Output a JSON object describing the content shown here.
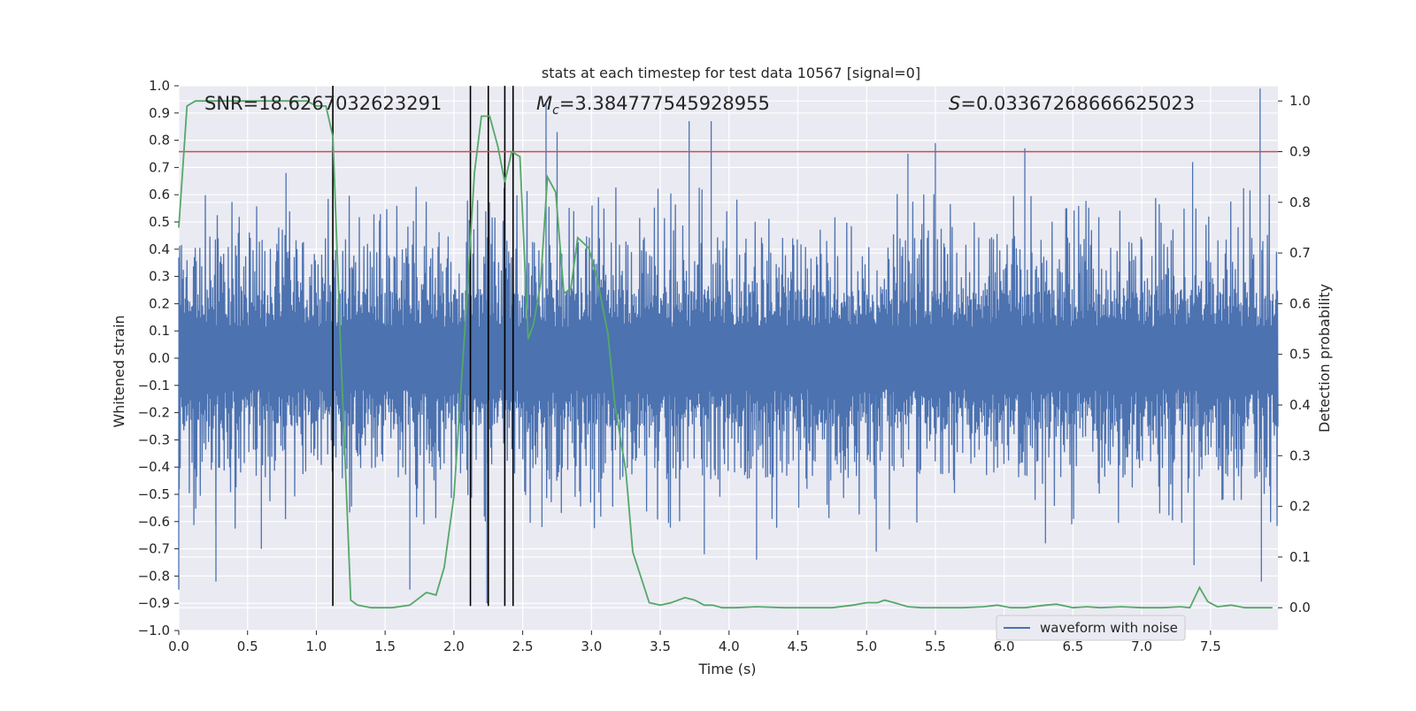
{
  "chart_data": {
    "type": "line",
    "title": "stats at each timestep for test data 10567 [signal=0]",
    "xlabel": "Time (s)",
    "ylabel": "Whitened strain",
    "ylabel_right": "Detection probability",
    "xlim": [
      0.0,
      7.99
    ],
    "ylim": [
      -1.0,
      1.0
    ],
    "ylim_right": [
      -0.045,
      1.03
    ],
    "x_ticks": [
      "0.0",
      "0.5",
      "1.0",
      "1.5",
      "2.0",
      "2.5",
      "3.0",
      "3.5",
      "4.0",
      "4.5",
      "5.0",
      "5.5",
      "6.0",
      "6.5",
      "7.0",
      "7.5"
    ],
    "y_ticks": [
      "1.0",
      "0.9",
      "0.8",
      "0.7",
      "0.6",
      "0.5",
      "0.4",
      "0.3",
      "0.2",
      "0.1",
      "0.0",
      "−0.1",
      "−0.2",
      "−0.3",
      "−0.4",
      "−0.5",
      "−0.6",
      "−0.7",
      "−0.8",
      "−0.9",
      "−1.0"
    ],
    "y_ticks_right": [
      "1.0",
      "0.9",
      "0.8",
      "0.7",
      "0.6",
      "0.5",
      "0.4",
      "0.3",
      "0.2",
      "0.1",
      "0.0"
    ],
    "grid": true,
    "legend": {
      "entries": [
        "waveform with noise"
      ],
      "placement": "lower right"
    },
    "annotations": {
      "snr": "SNR=18.6267032623291",
      "mc_symbol": "M",
      "mc_sub": "c",
      "mc_value": "=3.384777545928955",
      "s_symbol": "S",
      "s_value": "=0.03367268666625023"
    },
    "threshold_line": {
      "y": 0.9,
      "axis": "right",
      "color": "#c44e52"
    },
    "vertical_lines": {
      "x": [
        1.12,
        2.12,
        2.25,
        2.37,
        2.43
      ],
      "y_range": [
        -0.91,
        1.0
      ],
      "color": "#000000"
    },
    "waveform": {
      "name": "waveform with noise",
      "color": "#4c72b0",
      "duration": 7.99,
      "core_amplitude": 0.23,
      "typical_peak": 0.45,
      "peaks": [
        {
          "x": 2.67,
          "y": 0.94
        },
        {
          "x": 2.75,
          "y": 0.83
        },
        {
          "x": 3.71,
          "y": 0.87
        },
        {
          "x": 3.87,
          "y": 0.87
        },
        {
          "x": 5.5,
          "y": 0.79
        },
        {
          "x": 7.86,
          "y": 0.99
        },
        {
          "x": 2.43,
          "y": 0.72
        },
        {
          "x": 0.78,
          "y": 0.68
        },
        {
          "x": 5.3,
          "y": 0.75
        },
        {
          "x": 6.15,
          "y": 0.77
        },
        {
          "x": 7.37,
          "y": 0.72
        },
        {
          "x": 0.27,
          "y": -0.82
        },
        {
          "x": 1.68,
          "y": -0.85
        },
        {
          "x": 2.24,
          "y": -0.9
        },
        {
          "x": 3.82,
          "y": -0.72
        },
        {
          "x": 4.2,
          "y": -0.74
        },
        {
          "x": 5.07,
          "y": -0.71
        },
        {
          "x": 7.38,
          "y": -0.76
        },
        {
          "x": 7.87,
          "y": -0.82
        },
        {
          "x": 0.6,
          "y": -0.7
        },
        {
          "x": 6.3,
          "y": -0.68
        },
        {
          "x": 2.64,
          "y": -0.62
        },
        {
          "x": 0.0,
          "y": -0.85
        }
      ]
    },
    "probability_series": {
      "color": "#55a868",
      "x": [
        0.0,
        0.06,
        0.12,
        0.3,
        0.5,
        0.7,
        0.85,
        0.93,
        1.0,
        1.07,
        1.12,
        1.18,
        1.25,
        1.3,
        1.4,
        1.55,
        1.68,
        1.8,
        1.87,
        1.93,
        2.0,
        2.08,
        2.15,
        2.2,
        2.26,
        2.32,
        2.37,
        2.42,
        2.48,
        2.54,
        2.58,
        2.63,
        2.68,
        2.74,
        2.8,
        2.85,
        2.9,
        2.98,
        3.04,
        3.12,
        3.17,
        3.25,
        3.3,
        3.42,
        3.5,
        3.58,
        3.68,
        3.75,
        3.82,
        3.88,
        3.95,
        4.05,
        4.2,
        4.4,
        4.6,
        4.75,
        4.9,
        5.0,
        5.08,
        5.13,
        5.2,
        5.3,
        5.4,
        5.55,
        5.7,
        5.85,
        5.95,
        6.05,
        6.15,
        6.3,
        6.38,
        6.45,
        6.5,
        6.6,
        6.7,
        6.85,
        7.0,
        7.15,
        7.28,
        7.35,
        7.42,
        7.48,
        7.55,
        7.65,
        7.75,
        7.85,
        7.95
      ],
      "y": [
        0.75,
        0.99,
        1.0,
        1.0,
        1.0,
        1.0,
        1.0,
        1.0,
        0.99,
        0.99,
        0.93,
        0.49,
        0.015,
        0.005,
        0.0,
        0.0,
        0.005,
        0.03,
        0.025,
        0.08,
        0.22,
        0.55,
        0.86,
        0.97,
        0.97,
        0.91,
        0.84,
        0.9,
        0.89,
        0.53,
        0.56,
        0.64,
        0.85,
        0.82,
        0.62,
        0.63,
        0.73,
        0.71,
        0.65,
        0.54,
        0.4,
        0.27,
        0.11,
        0.01,
        0.005,
        0.01,
        0.02,
        0.015,
        0.005,
        0.005,
        0.0,
        0.0,
        0.002,
        0.0,
        0.0,
        0.0,
        0.005,
        0.01,
        0.01,
        0.015,
        0.01,
        0.002,
        0.0,
        0.0,
        0.0,
        0.002,
        0.005,
        0.0,
        0.0,
        0.005,
        0.007,
        0.003,
        0.0,
        0.002,
        0.0,
        0.002,
        0.0,
        0.0,
        0.002,
        0.0,
        0.04,
        0.012,
        0.002,
        0.005,
        0.0,
        0.0,
        0.0
      ]
    }
  }
}
